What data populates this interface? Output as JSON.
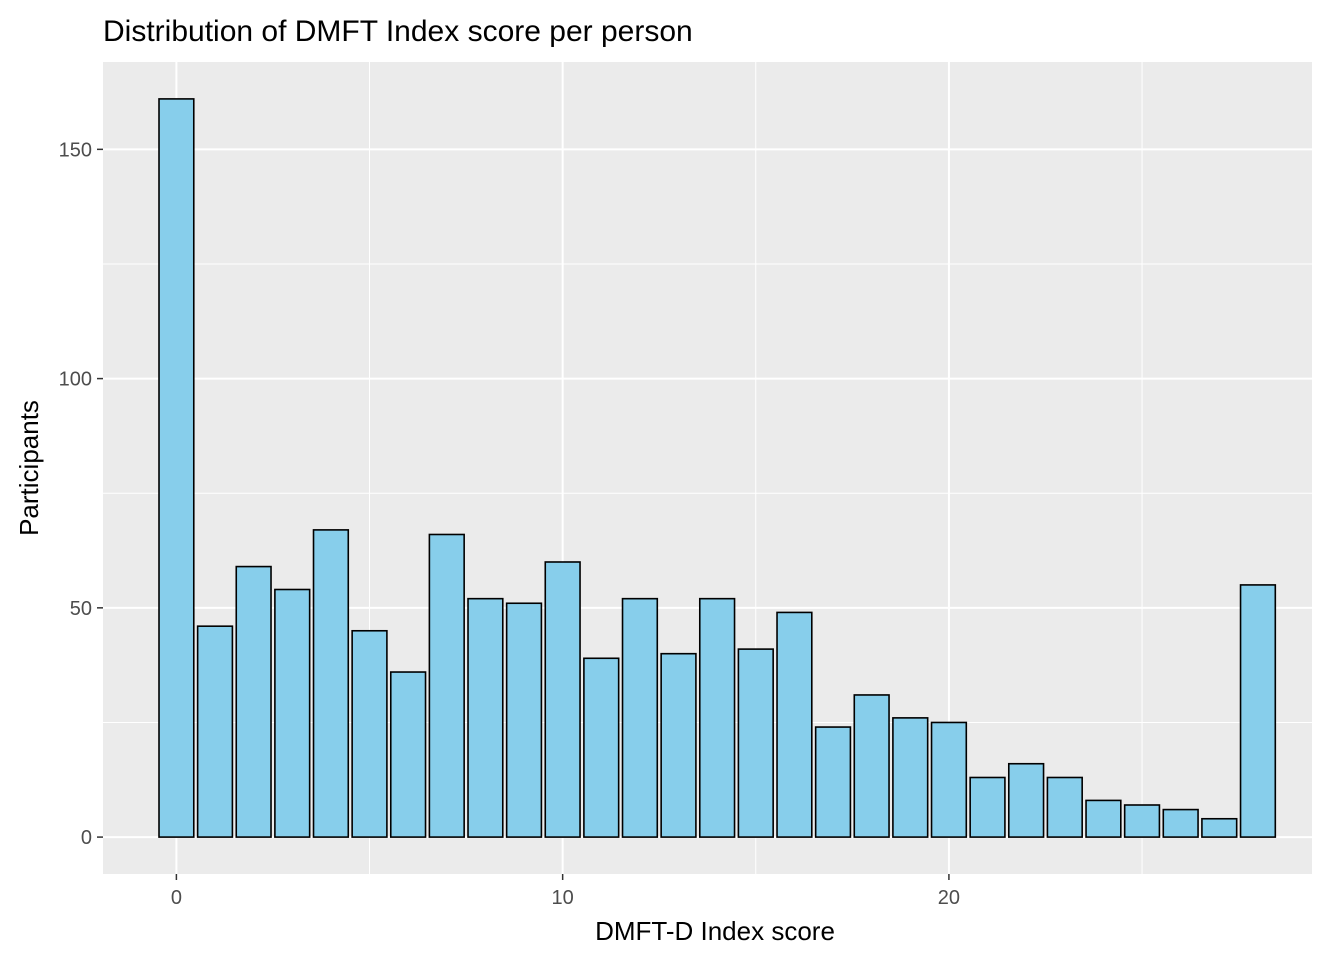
{
  "chart_data": {
    "type": "bar",
    "title": "Distribution of DMFT Index score per person",
    "xlabel": "DMFT-D Index score",
    "ylabel": "Participants",
    "x": [
      0,
      1,
      2,
      3,
      4,
      5,
      6,
      7,
      8,
      9,
      10,
      11,
      12,
      13,
      14,
      15,
      16,
      17,
      18,
      19,
      20,
      21,
      22,
      23,
      24,
      25,
      26,
      27,
      28
    ],
    "values": [
      161,
      46,
      59,
      54,
      67,
      45,
      36,
      66,
      52,
      51,
      60,
      39,
      52,
      40,
      52,
      41,
      49,
      24,
      31,
      26,
      25,
      13,
      16,
      13,
      8,
      7,
      6,
      4,
      55
    ],
    "xlim": [
      -1.9,
      29.4
    ],
    "ylim": [
      -8.05,
      169.05
    ],
    "x_ticks": [
      0,
      10,
      20
    ],
    "x_tick_labels": [
      "0",
      "10",
      "20"
    ],
    "y_ticks": [
      0,
      50,
      100,
      150
    ],
    "y_tick_labels": [
      "0",
      "50",
      "100",
      "150"
    ],
    "x_minor": [
      5,
      15,
      25
    ],
    "y_minor": [
      25,
      75,
      125
    ],
    "grid": true,
    "colors": {
      "bar_fill": "#87CEEB",
      "bar_stroke": "#000000",
      "panel": "#EBEBEB",
      "grid": "#FFFFFF",
      "tick_text": "#4D4D4D",
      "axis_text": "#000000"
    }
  }
}
